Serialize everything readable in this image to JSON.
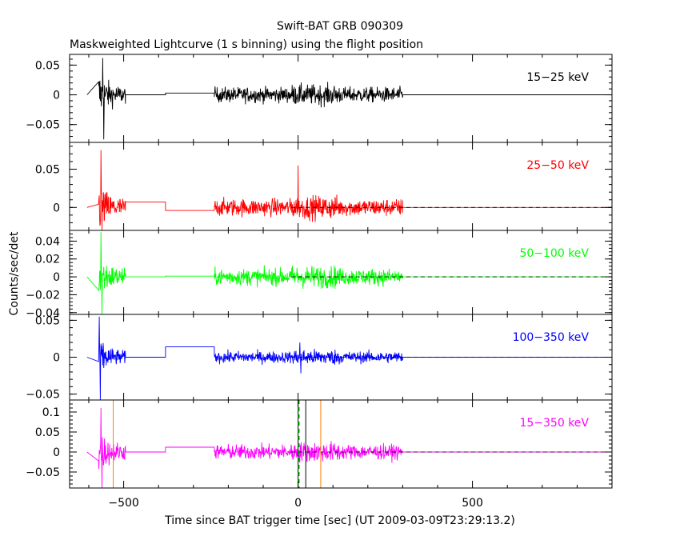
{
  "chart_data": {
    "type": "line",
    "title": "Swift-BAT GRB 090309",
    "subtitle": "Maskweighted Lightcurve (1 s binning) using the flight position",
    "xlabel": "Time since BAT trigger time [sec] (UT 2009-03-09T23:29:13.2)",
    "ylabel": "Counts/sec/det",
    "xlim": [
      -655,
      900
    ],
    "xticks": [
      -500,
      0,
      500
    ],
    "xtick_labels": [
      "−500",
      "0",
      "500"
    ],
    "data_segments": [
      [
        -572,
        -495
      ],
      [
        -240,
        300
      ]
    ],
    "gap_step_x": [
      -495,
      -380,
      -240
    ],
    "tail_x": [
      300,
      900
    ],
    "trigger_x": 0,
    "panels": [
      {
        "name": "15−25 keV",
        "color": "#000000",
        "ylim": [
          -0.08,
          0.068
        ],
        "yticks": [
          0.05,
          0,
          -0.05
        ],
        "ytick_labels": [
          "0.05",
          "0",
          "−0.05"
        ],
        "step_levels": [
          0,
          0.003
        ],
        "noise_sigma": 0.009,
        "early_sigma": 0.022,
        "spike": [
          -560,
          0.062,
          -0.075
        ],
        "dashed_zero": false,
        "marks": []
      },
      {
        "name": "25−50 keV",
        "color": "#ff0000",
        "ylim": [
          -0.03,
          0.085
        ],
        "yticks": [
          0.05,
          0
        ],
        "ytick_labels": [
          "0.05",
          "0"
        ],
        "step_levels": [
          0.007,
          -0.004
        ],
        "noise_sigma": 0.008,
        "early_sigma": 0.017,
        "spike": [
          -565,
          0.075,
          -0.03
        ],
        "dashed_zero": true,
        "marks": [
          {
            "x": 0,
            "y": 0.055
          }
        ]
      },
      {
        "name": "50−100 keV",
        "color": "#00ff00",
        "ylim": [
          -0.042,
          0.052
        ],
        "yticks": [
          0.04,
          0.02,
          0,
          -0.02,
          -0.04
        ],
        "ytick_labels": [
          "0.04",
          "0.02",
          "0",
          "−0.02",
          "−0.04"
        ],
        "step_levels": [
          0,
          0.0008
        ],
        "noise_sigma": 0.0065,
        "early_sigma": 0.012,
        "spike": [
          -565,
          0.05,
          -0.042
        ],
        "dashed_zero": true,
        "marks": []
      },
      {
        "name": "100−350 keV",
        "color": "#0000ff",
        "ylim": [
          -0.058,
          0.058
        ],
        "yticks": [
          0.05,
          0,
          -0.05
        ],
        "ytick_labels": [
          "0.05",
          "0",
          "−0.05"
        ],
        "step_levels": [
          0,
          0.014
        ],
        "noise_sigma": 0.0055,
        "early_sigma": 0.016,
        "spike": [
          -570,
          0.055,
          -0.058
        ],
        "dashed_zero": true,
        "marks": [
          {
            "x": 5,
            "y": 0.02
          },
          {
            "x": 8,
            "y": -0.022
          }
        ]
      },
      {
        "name": "15−350 keV",
        "color": "#ff00ff",
        "ylim": [
          -0.09,
          0.13
        ],
        "yticks": [
          0.1,
          0.05,
          0,
          -0.05
        ],
        "ytick_labels": [
          "0.1",
          "0.05",
          "0",
          "−0.05"
        ],
        "step_levels": [
          0,
          0.012
        ],
        "noise_sigma": 0.013,
        "early_sigma": 0.03,
        "spike": [
          -565,
          0.11,
          -0.09
        ],
        "dashed_zero": true,
        "marks": [],
        "vlines": [
          {
            "x": -530,
            "color": "#ff8000",
            "style": "solid"
          },
          {
            "x": 65,
            "color": "#ff8000",
            "style": "solid"
          },
          {
            "x": 0,
            "color": "#000000",
            "style": "solid"
          },
          {
            "x": 22,
            "color": "#000000",
            "style": "solid"
          },
          {
            "x": 2,
            "color": "#00a000",
            "style": "dashed"
          }
        ]
      }
    ]
  }
}
